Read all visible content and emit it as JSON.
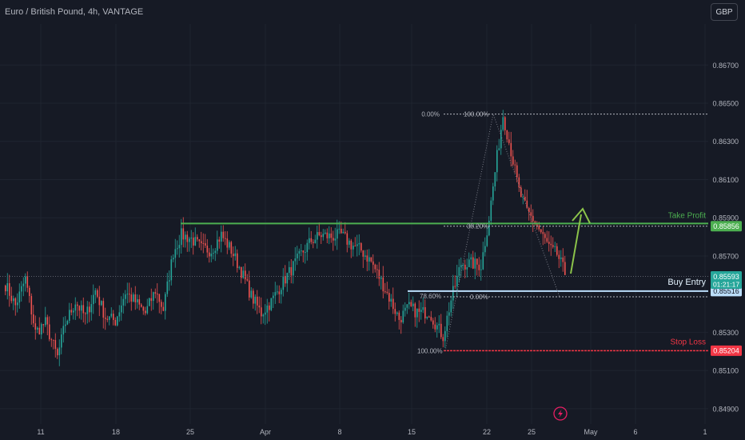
{
  "header": {
    "title": "Euro / British Pound, 4h, VANTAGE",
    "currency_button": "GBP"
  },
  "colors": {
    "background": "#161a25",
    "grid": "#1f2430",
    "up_candle": "#26a69a",
    "down_candle": "#ef5350",
    "take_profit": "#4caf50",
    "stop_loss": "#f23645",
    "entry": "#bbdefb",
    "fib": "#b2b5be",
    "arrow": "#8bc34a"
  },
  "chart_data": {
    "type": "candlestick",
    "x_tick_labels": [
      "11",
      "18",
      "25",
      "Apr",
      "8",
      "15",
      "22",
      "25",
      "May",
      "6",
      "1"
    ],
    "y_tick_labels": [
      "0.86700",
      "0.86500",
      "0.86300",
      "0.86100",
      "0.85900",
      "0.85700",
      "0.85300",
      "0.85100",
      "0.84900"
    ],
    "ylim": [
      0.8482,
      0.8681
    ],
    "grid": true,
    "close_path": [
      [
        0,
        0.8555
      ],
      [
        5,
        0.8544
      ],
      [
        10,
        0.8558
      ],
      [
        15,
        0.853
      ],
      [
        20,
        0.8535
      ],
      [
        26,
        0.8517
      ],
      [
        30,
        0.8535
      ],
      [
        35,
        0.8546
      ],
      [
        40,
        0.8538
      ],
      [
        45,
        0.8552
      ],
      [
        50,
        0.8538
      ],
      [
        55,
        0.8536
      ],
      [
        60,
        0.8551
      ],
      [
        65,
        0.8546
      ],
      [
        70,
        0.854
      ],
      [
        75,
        0.8552
      ],
      [
        79,
        0.8542
      ],
      [
        84,
        0.8572
      ],
      [
        88,
        0.8581
      ],
      [
        93,
        0.8579
      ],
      [
        98,
        0.8574
      ],
      [
        103,
        0.8573
      ],
      [
        108,
        0.8581
      ],
      [
        113,
        0.8573
      ],
      [
        118,
        0.8562
      ],
      [
        123,
        0.8549
      ],
      [
        128,
        0.854
      ],
      [
        133,
        0.8546
      ],
      [
        138,
        0.8555
      ],
      [
        143,
        0.8563
      ],
      [
        148,
        0.8571
      ],
      [
        153,
        0.8578
      ],
      [
        158,
        0.8581
      ],
      [
        163,
        0.858
      ],
      [
        168,
        0.8581
      ],
      [
        173,
        0.8576
      ],
      [
        178,
        0.8573
      ],
      [
        183,
        0.8567
      ],
      [
        188,
        0.8557
      ],
      [
        193,
        0.8546
      ],
      [
        197,
        0.8537
      ],
      [
        202,
        0.8543
      ],
      [
        207,
        0.854
      ],
      [
        212,
        0.8541
      ],
      [
        216,
        0.8533
      ],
      [
        219,
        0.8528
      ],
      [
        223,
        0.8547
      ],
      [
        228,
        0.8566
      ],
      [
        233,
        0.8566
      ],
      [
        238,
        0.8565
      ],
      [
        242,
        0.859
      ],
      [
        246,
        0.8622
      ],
      [
        249,
        0.8644
      ],
      [
        253,
        0.8625
      ],
      [
        257,
        0.8604
      ],
      [
        261,
        0.8593
      ],
      [
        265,
        0.8588
      ],
      [
        269,
        0.858
      ],
      [
        273,
        0.8573
      ],
      [
        276,
        0.8571
      ],
      [
        280,
        0.8561
      ]
    ],
    "annotations": {
      "take_profit": {
        "label": "Take Profit",
        "price": "0.85856",
        "y": 0.85856
      },
      "entry": {
        "label": "Buy Entry",
        "price": "0.85516",
        "y": 0.85516
      },
      "stop_loss": {
        "label": "Stop Loss",
        "price": "0.85204",
        "y": 0.85204
      },
      "current_price": {
        "price": "0.85593",
        "countdown": "01:21:17",
        "y": 0.85593
      },
      "resistance_level": 0.8587,
      "fibonacci": [
        {
          "label": "0.00%",
          "y": 0.86443
        },
        {
          "label": "100.00%",
          "y": 0.86443
        },
        {
          "label": "38.20%",
          "y": 0.85856
        },
        {
          "label": "78.60%",
          "y": 0.85516
        },
        {
          "label": "0.00%",
          "y": 0.85486
        },
        {
          "label": "100.00%",
          "y": 0.85204
        }
      ]
    }
  }
}
